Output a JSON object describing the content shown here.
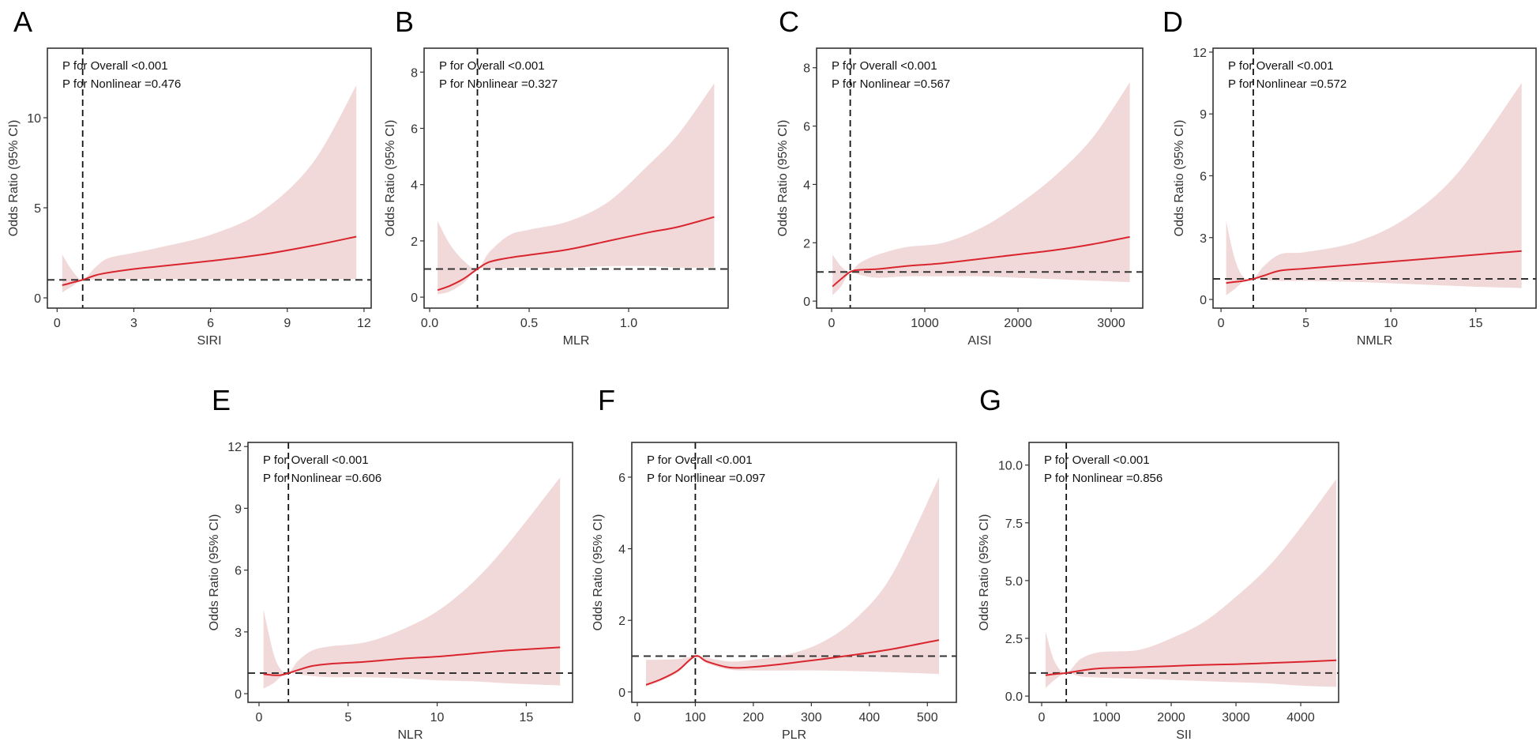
{
  "colors": {
    "line": "#d9262e",
    "band": "#f2d9d9",
    "ref": "#333333",
    "frame": "#333333"
  },
  "chart_data": [
    {
      "type": "line",
      "panel": "A",
      "xlabel": "SIRI",
      "ylabel": "Odds Ratio (95% CI)",
      "p_overall": "P for Overall <0.001",
      "p_nonlinear": "P for Nonlinear =0.476",
      "xlim": [
        -0.38,
        12.28
      ],
      "ylim": [
        -0.57,
        13.86
      ],
      "ref_x": 1.0,
      "ref_y": 1,
      "xticks": [
        0,
        3,
        6,
        9,
        12
      ],
      "xtick_labels": [
        "0",
        "3",
        "6",
        "9",
        "12"
      ],
      "yticks": [
        0,
        5,
        10
      ],
      "ytick_labels": [
        "0",
        "5",
        "10"
      ],
      "x": [
        0.2,
        0.6,
        1.0,
        1.5,
        2,
        3,
        4,
        6,
        8,
        10,
        11.7
      ],
      "or": [
        0.7,
        0.85,
        1.0,
        1.25,
        1.4,
        1.6,
        1.75,
        2.05,
        2.4,
        2.9,
        3.4
      ],
      "lower": [
        0.3,
        0.65,
        1.0,
        1.02,
        1.05,
        1.05,
        1.05,
        1.05,
        1.05,
        1.05,
        1.05
      ],
      "upper": [
        2.4,
        1.5,
        1.0,
        1.7,
        2.2,
        2.5,
        2.8,
        3.5,
        4.8,
        7.5,
        11.8
      ]
    },
    {
      "type": "line",
      "panel": "B",
      "xlabel": "MLR",
      "ylabel": "Odds Ratio (95% CI)",
      "p_overall": "P for Overall <0.001",
      "p_nonlinear": "P for Nonlinear =0.327",
      "xlim": [
        -0.028,
        1.5
      ],
      "ylim": [
        -0.39,
        8.85
      ],
      "ref_x": 0.24,
      "ref_y": 1,
      "xticks": [
        0,
        0.5,
        1.0
      ],
      "xtick_labels": [
        "0.0",
        "0.5",
        "1.0"
      ],
      "yticks": [
        0,
        2,
        4,
        6,
        8
      ],
      "ytick_labels": [
        "0",
        "2",
        "4",
        "6",
        "8"
      ],
      "x": [
        0.04,
        0.1,
        0.17,
        0.24,
        0.3,
        0.4,
        0.5,
        0.7,
        0.9,
        1.1,
        1.25,
        1.43
      ],
      "or": [
        0.25,
        0.4,
        0.65,
        1.0,
        1.25,
        1.4,
        1.5,
        1.7,
        2.0,
        2.3,
        2.5,
        2.85
      ],
      "lower": [
        0.1,
        0.2,
        0.5,
        1.0,
        1.0,
        1.05,
        1.05,
        1.05,
        1.1,
        1.1,
        1.05,
        1.05
      ],
      "upper": [
        2.7,
        1.9,
        1.3,
        1.0,
        1.6,
        2.2,
        2.4,
        2.7,
        3.4,
        4.7,
        5.8,
        7.6
      ]
    },
    {
      "type": "line",
      "panel": "C",
      "xlabel": "AISI",
      "ylabel": "Odds Ratio (95% CI)",
      "p_overall": "P for Overall <0.001",
      "p_nonlinear": "P for Nonlinear =0.567",
      "xlim": [
        -161,
        3339
      ],
      "ylim": [
        -0.24,
        8.67
      ],
      "ref_x": 200,
      "ref_y": 1,
      "xticks": [
        0,
        1000,
        2000,
        3000
      ],
      "xtick_labels": [
        "0",
        "1000",
        "2000",
        "3000"
      ],
      "yticks": [
        0,
        2,
        4,
        6,
        8
      ],
      "ytick_labels": [
        "0",
        "2",
        "4",
        "6",
        "8"
      ],
      "x": [
        10,
        100,
        200,
        300,
        500,
        800,
        1200,
        1600,
        2000,
        2400,
        2800,
        3200
      ],
      "or": [
        0.5,
        0.75,
        1.0,
        1.07,
        1.1,
        1.2,
        1.3,
        1.45,
        1.6,
        1.75,
        1.95,
        2.2
      ],
      "lower": [
        0.2,
        0.5,
        1.0,
        0.9,
        0.8,
        0.85,
        0.85,
        0.85,
        0.8,
        0.75,
        0.7,
        0.65
      ],
      "upper": [
        1.6,
        1.2,
        1.0,
        1.3,
        1.6,
        1.85,
        2.0,
        2.5,
        3.3,
        4.3,
        5.6,
        7.5
      ]
    },
    {
      "type": "line",
      "panel": "D",
      "xlabel": "NMLR",
      "ylabel": "Odds Ratio (95% CI)",
      "p_overall": "P for Overall <0.001",
      "p_nonlinear": "P for Nonlinear =0.572",
      "xlim": [
        -0.47,
        18.55
      ],
      "ylim": [
        -0.42,
        12.19
      ],
      "ref_x": 1.9,
      "ref_y": 1,
      "xticks": [
        0,
        5,
        10,
        15
      ],
      "xtick_labels": [
        "0",
        "5",
        "10",
        "15"
      ],
      "yticks": [
        0,
        3,
        6,
        9,
        12
      ],
      "ytick_labels": [
        "0",
        "3",
        "6",
        "9",
        "12"
      ],
      "x": [
        0.3,
        0.8,
        1.3,
        1.9,
        2.5,
        3.5,
        5,
        8,
        11,
        14,
        17.7
      ],
      "or": [
        0.8,
        0.85,
        0.9,
        1.0,
        1.15,
        1.4,
        1.5,
        1.7,
        1.9,
        2.1,
        2.35
      ],
      "lower": [
        0.2,
        0.5,
        0.85,
        1.0,
        0.95,
        0.9,
        0.9,
        0.85,
        0.75,
        0.65,
        0.55
      ],
      "upper": [
        3.8,
        2.0,
        1.1,
        1.0,
        1.6,
        2.2,
        2.3,
        2.8,
        4.0,
        6.2,
        10.5
      ]
    },
    {
      "type": "line",
      "panel": "E",
      "xlabel": "NLR",
      "ylabel": "Odds Ratio (95% CI)",
      "p_overall": "P for Overall <0.001",
      "p_nonlinear": "P for Nonlinear =0.606",
      "xlim": [
        -0.62,
        17.6
      ],
      "ylim": [
        -0.42,
        12.2
      ],
      "ref_x": 1.65,
      "ref_y": 1,
      "xticks": [
        0,
        5,
        10,
        15
      ],
      "xtick_labels": [
        "0",
        "5",
        "10",
        "15"
      ],
      "yticks": [
        0,
        3,
        6,
        9,
        12
      ],
      "ytick_labels": [
        "0",
        "3",
        "6",
        "9",
        "12"
      ],
      "x": [
        0.25,
        0.8,
        1.2,
        1.65,
        2.2,
        3,
        4,
        6,
        8,
        10,
        12,
        14,
        16.9
      ],
      "or": [
        0.95,
        0.9,
        0.9,
        1.0,
        1.15,
        1.35,
        1.45,
        1.55,
        1.7,
        1.8,
        1.95,
        2.1,
        2.25
      ],
      "lower": [
        0.25,
        0.5,
        0.8,
        1.0,
        0.95,
        0.85,
        0.8,
        0.8,
        0.75,
        0.65,
        0.6,
        0.5,
        0.4
      ],
      "upper": [
        4.1,
        2.0,
        1.2,
        1.0,
        1.6,
        2.1,
        2.3,
        2.5,
        3.1,
        4.0,
        5.4,
        7.3,
        10.5
      ]
    },
    {
      "type": "line",
      "panel": "F",
      "xlabel": "PLR",
      "ylabel": "Odds Ratio (95% CI)",
      "p_overall": "P for Overall <0.001",
      "p_nonlinear": "P for Nonlinear =0.097",
      "xlim": [
        -9.5,
        550
      ],
      "ylim": [
        -0.29,
        6.97
      ],
      "ref_x": 100,
      "ref_y": 1,
      "xticks": [
        0,
        100,
        200,
        300,
        400,
        500
      ],
      "xtick_labels": [
        "0",
        "100",
        "200",
        "300",
        "400",
        "500"
      ],
      "yticks": [
        0,
        2,
        4,
        6
      ],
      "ytick_labels": [
        "0",
        "2",
        "4",
        "6"
      ],
      "x": [
        15,
        40,
        70,
        100,
        120,
        160,
        200,
        260,
        320,
        380,
        440,
        520
      ],
      "or": [
        0.2,
        0.35,
        0.6,
        1.0,
        0.85,
        0.68,
        0.7,
        0.8,
        0.92,
        1.05,
        1.2,
        1.45
      ],
      "lower": [
        0.15,
        0.3,
        0.55,
        1.0,
        0.8,
        0.62,
        0.6,
        0.6,
        0.6,
        0.58,
        0.55,
        0.5
      ],
      "upper": [
        0.9,
        0.9,
        0.92,
        1.0,
        0.95,
        0.85,
        0.9,
        1.05,
        1.4,
        2.1,
        3.3,
        6.0
      ]
    },
    {
      "type": "line",
      "panel": "G",
      "xlabel": "SII",
      "ylabel": "Odds Ratio (95% CI)",
      "p_overall": "P for Overall <0.001",
      "p_nonlinear": "P for Nonlinear =0.856",
      "xlim": [
        -195,
        4585
      ],
      "ylim": [
        -0.27,
        10.98
      ],
      "ref_x": 380,
      "ref_y": 1,
      "xticks": [
        0,
        1000,
        2000,
        3000,
        4000
      ],
      "xtick_labels": [
        "0",
        "1000",
        "2000",
        "3000",
        "4000"
      ],
      "yticks": [
        0,
        2.5,
        5,
        7.5,
        10
      ],
      "ytick_labels": [
        "0.0",
        "2.5",
        "5.0",
        "7.5",
        "10.0"
      ],
      "x": [
        60,
        200,
        380,
        600,
        900,
        1500,
        2000,
        2500,
        3000,
        3500,
        4000,
        4550
      ],
      "or": [
        0.9,
        0.95,
        1.0,
        1.1,
        1.2,
        1.25,
        1.3,
        1.35,
        1.38,
        1.43,
        1.48,
        1.55
      ],
      "lower": [
        0.35,
        0.7,
        1.0,
        0.85,
        0.8,
        0.75,
        0.7,
        0.65,
        0.6,
        0.55,
        0.45,
        0.4
      ],
      "upper": [
        2.8,
        1.5,
        1.0,
        1.6,
        1.9,
        2.0,
        2.5,
        3.2,
        4.3,
        5.6,
        7.3,
        9.4
      ]
    }
  ]
}
